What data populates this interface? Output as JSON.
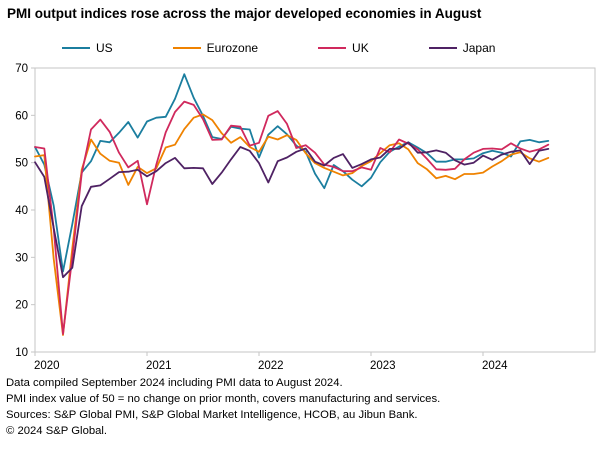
{
  "title": "PMI output indices rose across the major developed economies in August",
  "footer": {
    "lines": [
      "Data compiled September 2024 including PMI data to August 2024.",
      "PMI index value of 50 = no change on prior month, covers manufacturing and services.",
      "Sources: S&P Global PMI, S&P Global Market Intelligence, HCOB, au Jibun Bank.",
      "© 2024 S&P Global."
    ]
  },
  "chart_data": {
    "type": "line",
    "title": "PMI output indices rose across the major developed economies in August",
    "x_start": "2020-01",
    "x_freq": "monthly",
    "x_end": "2024-08",
    "x_tick_labels": [
      "2020",
      "2021",
      "2022",
      "2023",
      "2024"
    ],
    "ylim": [
      10,
      70
    ],
    "y_ticks": [
      10,
      20,
      30,
      40,
      50,
      60,
      70
    ],
    "grid": false,
    "legend_position": "top",
    "series": [
      {
        "name": "US",
        "color": "#1b7e9f",
        "values": [
          53.3,
          49.6,
          40.9,
          27.0,
          37.0,
          47.9,
          50.3,
          54.6,
          54.3,
          56.3,
          58.6,
          55.3,
          58.7,
          59.5,
          59.7,
          63.5,
          68.7,
          63.7,
          59.9,
          55.4,
          55.0,
          57.6,
          57.2,
          57.0,
          51.1,
          55.9,
          57.7,
          56.0,
          53.6,
          52.3,
          47.7,
          44.6,
          49.5,
          48.2,
          46.4,
          45.0,
          46.8,
          50.1,
          52.3,
          53.4,
          54.3,
          53.2,
          52.0,
          50.2,
          50.2,
          50.7,
          50.7,
          50.9,
          52.0,
          52.5,
          52.1,
          51.3,
          54.5,
          54.8,
          54.3,
          54.6
        ]
      },
      {
        "name": "Eurozone",
        "color": "#ef8200",
        "values": [
          51.3,
          51.6,
          29.7,
          13.6,
          31.9,
          48.5,
          54.9,
          51.9,
          50.4,
          50.0,
          45.3,
          49.1,
          47.8,
          48.8,
          53.2,
          53.8,
          57.1,
          59.5,
          60.2,
          59.0,
          56.2,
          54.2,
          55.4,
          53.3,
          52.3,
          55.5,
          54.9,
          55.8,
          54.8,
          52.0,
          49.9,
          48.9,
          48.1,
          47.3,
          47.8,
          49.3,
          50.3,
          52.0,
          53.7,
          54.1,
          52.8,
          49.9,
          48.6,
          46.7,
          47.2,
          46.5,
          47.6,
          47.6,
          47.9,
          49.2,
          50.3,
          51.7,
          52.2,
          50.9,
          50.2,
          51.0
        ]
      },
      {
        "name": "UK",
        "color": "#d0295d",
        "values": [
          53.3,
          53.0,
          36.0,
          13.8,
          30.0,
          47.7,
          57.0,
          59.1,
          56.5,
          52.1,
          49.0,
          50.4,
          41.2,
          49.6,
          56.4,
          60.7,
          62.9,
          62.2,
          59.2,
          54.8,
          54.9,
          57.8,
          57.6,
          53.6,
          54.2,
          59.9,
          60.9,
          58.2,
          53.1,
          53.7,
          52.1,
          49.6,
          49.1,
          48.2,
          48.2,
          49.0,
          48.5,
          53.1,
          52.2,
          54.9,
          54.0,
          52.8,
          50.8,
          48.6,
          48.5,
          48.7,
          50.7,
          52.1,
          52.9,
          53.0,
          52.8,
          54.1,
          53.0,
          52.3,
          52.8,
          53.8
        ]
      },
      {
        "name": "Japan",
        "color": "#4f2264",
        "values": [
          50.1,
          47.0,
          36.2,
          25.8,
          27.8,
          40.8,
          44.9,
          45.2,
          46.6,
          48.0,
          48.1,
          48.5,
          47.1,
          48.2,
          49.9,
          51.0,
          48.8,
          48.9,
          48.8,
          45.5,
          47.9,
          50.7,
          53.3,
          52.5,
          49.9,
          45.8,
          50.3,
          51.1,
          52.3,
          53.0,
          50.2,
          49.4,
          51.0,
          51.8,
          48.9,
          49.7,
          50.7,
          51.1,
          52.9,
          52.9,
          54.3,
          52.1,
          52.2,
          52.6,
          52.1,
          50.5,
          49.6,
          50.0,
          51.5,
          50.6,
          51.7,
          52.3,
          52.6,
          49.7,
          52.5,
          52.9
        ]
      }
    ]
  }
}
